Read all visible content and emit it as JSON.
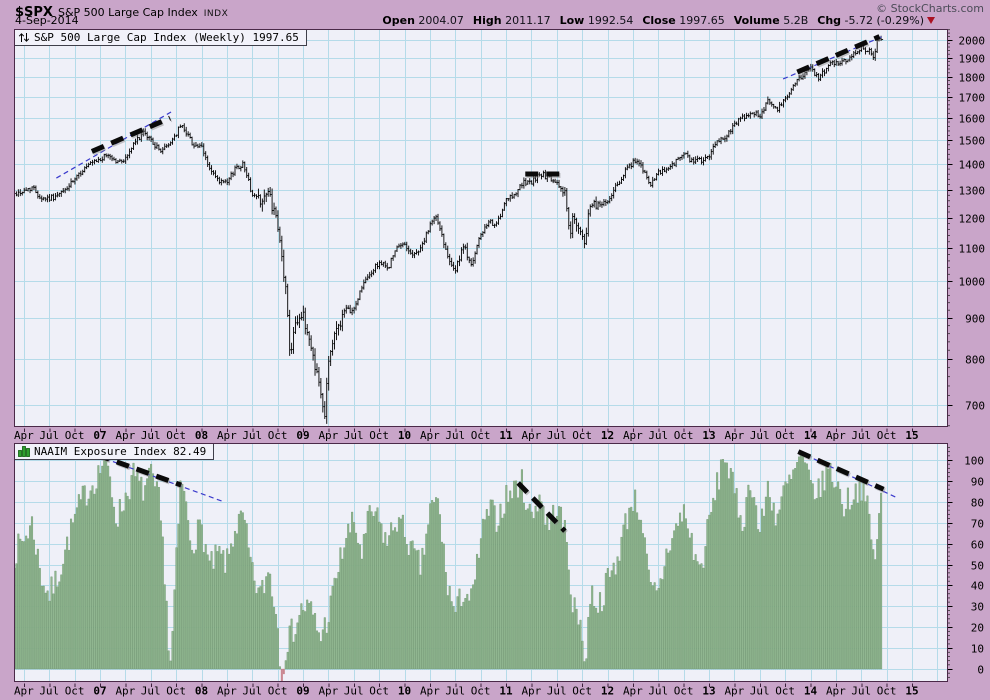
{
  "header": {
    "symbol": "$SPX",
    "name": "S&P 500 Large Cap Index",
    "exchange": "INDX",
    "copyright": "© StockCharts.com",
    "date": "4-Sep-2014",
    "quote_fields": [
      {
        "label": "Open",
        "value": "2004.07"
      },
      {
        "label": "High",
        "value": "2011.17"
      },
      {
        "label": "Low",
        "value": "1992.54"
      },
      {
        "label": "Close",
        "value": "1997.65"
      },
      {
        "label": "Volume",
        "value": "5.2B"
      },
      {
        "label": "Chg",
        "value": "-5.72 (-0.29%)"
      }
    ],
    "change_direction": "down",
    "change_icon": "red-down-triangle-icon"
  },
  "colors": {
    "page_bg": "#c9a5c9",
    "plot_bg": "#eff0f8",
    "grid": "#b5dbe9",
    "frame": "#4a2948",
    "price_bars": "#000000",
    "naaim_fill": "#90b690",
    "naaim_stroke": "#6d966d",
    "naaim_negative": "#c9858f",
    "annotation_black": "#0a0a0a",
    "annotation_blue": "#3a3acc",
    "change_down": "#aa1122",
    "tick": "#3c1f3c"
  },
  "x_axis_labels": [
    "Apr",
    "Jul",
    "Oct",
    "07",
    "Apr",
    "Jul",
    "Oct",
    "08",
    "Apr",
    "Jul",
    "Oct",
    "09",
    "Apr",
    "Jul",
    "Oct",
    "10",
    "Apr",
    "Jul",
    "Oct",
    "11",
    "Apr",
    "Jul",
    "Oct",
    "12",
    "Apr",
    "Jul",
    "Oct",
    "13",
    "Apr",
    "Jul",
    "Oct",
    "14",
    "Apr",
    "Jul",
    "Oct",
    "15"
  ],
  "chart_data": [
    {
      "type": "ohlc-bar",
      "title": "S&P 500 Large Cap Index (Weekly) 1997.65",
      "legend_icon": "up-down-arrows-icon",
      "yscale": "log",
      "ylim": [
        658,
        2064
      ],
      "y_ticks": [
        2000,
        1900,
        1800,
        1700,
        1600,
        1500,
        1400,
        1300,
        1200,
        1100,
        1000,
        900,
        800,
        700
      ],
      "grid": true,
      "legend_position": "top-left",
      "anchors_monthly_close": [
        [
          2006.155,
          1285
        ],
        [
          2006.25,
          1295
        ],
        [
          2006.333,
          1311
        ],
        [
          2006.417,
          1270
        ],
        [
          2006.5,
          1270
        ],
        [
          2006.583,
          1277
        ],
        [
          2006.667,
          1304
        ],
        [
          2006.75,
          1336
        ],
        [
          2006.833,
          1378
        ],
        [
          2006.917,
          1401
        ],
        [
          2007.0,
          1418
        ],
        [
          2007.083,
          1438
        ],
        [
          2007.167,
          1407
        ],
        [
          2007.25,
          1421
        ],
        [
          2007.333,
          1482
        ],
        [
          2007.417,
          1531
        ],
        [
          2007.5,
          1503
        ],
        [
          2007.583,
          1455
        ],
        [
          2007.667,
          1474
        ],
        [
          2007.75,
          1527
        ],
        [
          2007.79,
          1562
        ],
        [
          2007.833,
          1549
        ],
        [
          2007.917,
          1481
        ],
        [
          2008.0,
          1468
        ],
        [
          2008.083,
          1379
        ],
        [
          2008.167,
          1331
        ],
        [
          2008.25,
          1323
        ],
        [
          2008.333,
          1386
        ],
        [
          2008.417,
          1400
        ],
        [
          2008.5,
          1280
        ],
        [
          2008.583,
          1267
        ],
        [
          2008.667,
          1283
        ],
        [
          2008.75,
          1166
        ],
        [
          2008.833,
          969
        ],
        [
          2008.875,
          800
        ],
        [
          2008.917,
          896
        ],
        [
          2009.0,
          903
        ],
        [
          2009.083,
          826
        ],
        [
          2009.167,
          735
        ],
        [
          2009.21,
          675
        ],
        [
          2009.25,
          798
        ],
        [
          2009.333,
          873
        ],
        [
          2009.417,
          919
        ],
        [
          2009.5,
          919
        ],
        [
          2009.583,
          987
        ],
        [
          2009.667,
          1021
        ],
        [
          2009.75,
          1057
        ],
        [
          2009.833,
          1036
        ],
        [
          2009.917,
          1096
        ],
        [
          2010.0,
          1115
        ],
        [
          2010.083,
          1074
        ],
        [
          2010.167,
          1104
        ],
        [
          2010.25,
          1169
        ],
        [
          2010.3,
          1212
        ],
        [
          2010.417,
          1089
        ],
        [
          2010.5,
          1031
        ],
        [
          2010.583,
          1102
        ],
        [
          2010.667,
          1049
        ],
        [
          2010.75,
          1141
        ],
        [
          2010.833,
          1183
        ],
        [
          2010.917,
          1181
        ],
        [
          2011.0,
          1258
        ],
        [
          2011.083,
          1286
        ],
        [
          2011.167,
          1327
        ],
        [
          2011.25,
          1326
        ],
        [
          2011.333,
          1364
        ],
        [
          2011.417,
          1345
        ],
        [
          2011.5,
          1321
        ],
        [
          2011.583,
          1292
        ],
        [
          2011.61,
          1199
        ],
        [
          2011.63,
          1123
        ],
        [
          2011.667,
          1219
        ],
        [
          2011.71,
          1154
        ],
        [
          2011.75,
          1131
        ],
        [
          2011.77,
          1099
        ],
        [
          2011.833,
          1253
        ],
        [
          2011.917,
          1247
        ],
        [
          2012.0,
          1258
        ],
        [
          2012.083,
          1312
        ],
        [
          2012.167,
          1366
        ],
        [
          2012.25,
          1408
        ],
        [
          2012.333,
          1398
        ],
        [
          2012.417,
          1310
        ],
        [
          2012.5,
          1362
        ],
        [
          2012.583,
          1379
        ],
        [
          2012.667,
          1407
        ],
        [
          2012.75,
          1441
        ],
        [
          2012.833,
          1412
        ],
        [
          2012.917,
          1416
        ],
        [
          2013.0,
          1426
        ],
        [
          2013.083,
          1498
        ],
        [
          2013.167,
          1515
        ],
        [
          2013.25,
          1569
        ],
        [
          2013.333,
          1598
        ],
        [
          2013.417,
          1631
        ],
        [
          2013.5,
          1606
        ],
        [
          2013.583,
          1686
        ],
        [
          2013.667,
          1633
        ],
        [
          2013.75,
          1682
        ],
        [
          2013.833,
          1757
        ],
        [
          2013.917,
          1806
        ],
        [
          2014.0,
          1848
        ],
        [
          2014.083,
          1783
        ],
        [
          2014.167,
          1859
        ],
        [
          2014.25,
          1872
        ],
        [
          2014.333,
          1884
        ],
        [
          2014.417,
          1924
        ],
        [
          2014.5,
          1960
        ],
        [
          2014.583,
          1931
        ],
        [
          2014.625,
          1909
        ],
        [
          2014.66,
          2003
        ],
        [
          2014.7,
          1997.65
        ]
      ],
      "annotations": [
        {
          "style": "blue-dashed",
          "points": [
            [
              2006.57,
              1345
            ],
            [
              2007.7,
              1626
            ]
          ]
        },
        {
          "style": "black-dashed",
          "points": [
            [
              2006.92,
              1452
            ],
            [
              2007.69,
              1598
            ]
          ]
        },
        {
          "style": "black-dashed",
          "points": [
            [
              2011.19,
              1361
            ],
            [
              2011.59,
              1361
            ]
          ]
        },
        {
          "style": "blue-dashed",
          "points": [
            [
              2013.73,
              1788
            ],
            [
              2014.72,
              2023
            ]
          ]
        },
        {
          "style": "black-dashed",
          "points": [
            [
              2013.87,
              1824
            ],
            [
              2014.68,
              2020
            ]
          ]
        }
      ]
    },
    {
      "type": "bar",
      "title": "NAAIM Exposure Index 82.49",
      "legend_icon": "bar-chart-icon",
      "yscale": "linear",
      "ylim": [
        -6,
        108
      ],
      "y_ticks": [
        100,
        90,
        80,
        70,
        60,
        50,
        40,
        30,
        20,
        10,
        0
      ],
      "grid": true,
      "legend_position": "top-left",
      "anchors_weekly": [
        [
          2006.155,
          55
        ],
        [
          2006.25,
          62
        ],
        [
          2006.333,
          70
        ],
        [
          2006.417,
          45
        ],
        [
          2006.5,
          35
        ],
        [
          2006.583,
          44
        ],
        [
          2006.667,
          58
        ],
        [
          2006.75,
          72
        ],
        [
          2006.833,
          82
        ],
        [
          2006.917,
          88
        ],
        [
          2007.0,
          95
        ],
        [
          2007.05,
          102
        ],
        [
          2007.167,
          72
        ],
        [
          2007.25,
          82
        ],
        [
          2007.333,
          93
        ],
        [
          2007.417,
          85
        ],
        [
          2007.5,
          92
        ],
        [
          2007.583,
          80
        ],
        [
          2007.65,
          40
        ],
        [
          2007.69,
          -4
        ],
        [
          2007.72,
          22
        ],
        [
          2007.8,
          93
        ],
        [
          2007.9,
          60
        ],
        [
          2008.0,
          68
        ],
        [
          2008.083,
          48
        ],
        [
          2008.167,
          55
        ],
        [
          2008.25,
          50
        ],
        [
          2008.333,
          68
        ],
        [
          2008.417,
          72
        ],
        [
          2008.5,
          45
        ],
        [
          2008.583,
          35
        ],
        [
          2008.667,
          48
        ],
        [
          2008.75,
          22
        ],
        [
          2008.79,
          -7
        ],
        [
          2008.833,
          12
        ],
        [
          2008.917,
          20
        ],
        [
          2009.0,
          30
        ],
        [
          2009.083,
          28
        ],
        [
          2009.167,
          15
        ],
        [
          2009.25,
          25
        ],
        [
          2009.333,
          45
        ],
        [
          2009.417,
          62
        ],
        [
          2009.5,
          70
        ],
        [
          2009.583,
          55
        ],
        [
          2009.667,
          76
        ],
        [
          2009.75,
          70
        ],
        [
          2009.833,
          60
        ],
        [
          2009.917,
          72
        ],
        [
          2010.0,
          66
        ],
        [
          2010.083,
          55
        ],
        [
          2010.167,
          48
        ],
        [
          2010.25,
          76
        ],
        [
          2010.333,
          80
        ],
        [
          2010.417,
          42
        ],
        [
          2010.5,
          26
        ],
        [
          2010.583,
          38
        ],
        [
          2010.667,
          32
        ],
        [
          2010.75,
          62
        ],
        [
          2010.833,
          76
        ],
        [
          2010.917,
          72
        ],
        [
          2011.0,
          82
        ],
        [
          2011.083,
          86
        ],
        [
          2011.15,
          90
        ],
        [
          2011.25,
          72
        ],
        [
          2011.333,
          84
        ],
        [
          2011.417,
          68
        ],
        [
          2011.5,
          78
        ],
        [
          2011.583,
          66
        ],
        [
          2011.667,
          28
        ],
        [
          2011.75,
          22
        ],
        [
          2011.78,
          -3
        ],
        [
          2011.833,
          38
        ],
        [
          2011.917,
          30
        ],
        [
          2012.0,
          42
        ],
        [
          2012.083,
          50
        ],
        [
          2012.167,
          68
        ],
        [
          2012.25,
          82
        ],
        [
          2012.333,
          74
        ],
        [
          2012.417,
          38
        ],
        [
          2012.5,
          35
        ],
        [
          2012.583,
          56
        ],
        [
          2012.667,
          66
        ],
        [
          2012.75,
          76
        ],
        [
          2012.833,
          60
        ],
        [
          2012.917,
          46
        ],
        [
          2013.0,
          70
        ],
        [
          2013.083,
          88
        ],
        [
          2013.15,
          104
        ],
        [
          2013.25,
          84
        ],
        [
          2013.333,
          70
        ],
        [
          2013.417,
          92
        ],
        [
          2013.5,
          64
        ],
        [
          2013.583,
          88
        ],
        [
          2013.667,
          72
        ],
        [
          2013.75,
          86
        ],
        [
          2013.833,
          92
        ],
        [
          2013.9,
          102
        ],
        [
          2014.0,
          88
        ],
        [
          2014.083,
          84
        ],
        [
          2014.167,
          96
        ],
        [
          2014.25,
          90
        ],
        [
          2014.333,
          78
        ],
        [
          2014.417,
          84
        ],
        [
          2014.5,
          88
        ],
        [
          2014.583,
          72
        ],
        [
          2014.625,
          50
        ],
        [
          2014.7,
          82.49
        ]
      ],
      "annotations": [
        {
          "style": "blue-dashed",
          "points": [
            [
              2006.97,
              102
            ],
            [
              2008.22,
              80
            ]
          ]
        },
        {
          "style": "black-dashed",
          "points": [
            [
              2006.97,
              102.5
            ],
            [
              2007.8,
              88
            ]
          ]
        },
        {
          "style": "black-dashed",
          "points": [
            [
              2011.12,
              89
            ],
            [
              2011.58,
              66
            ]
          ]
        },
        {
          "style": "blue-dashed",
          "points": [
            [
              2013.88,
              104
            ],
            [
              2014.85,
              82
            ]
          ]
        },
        {
          "style": "black-dashed",
          "points": [
            [
              2013.88,
              104
            ],
            [
              2014.72,
              86
            ]
          ]
        }
      ]
    }
  ]
}
